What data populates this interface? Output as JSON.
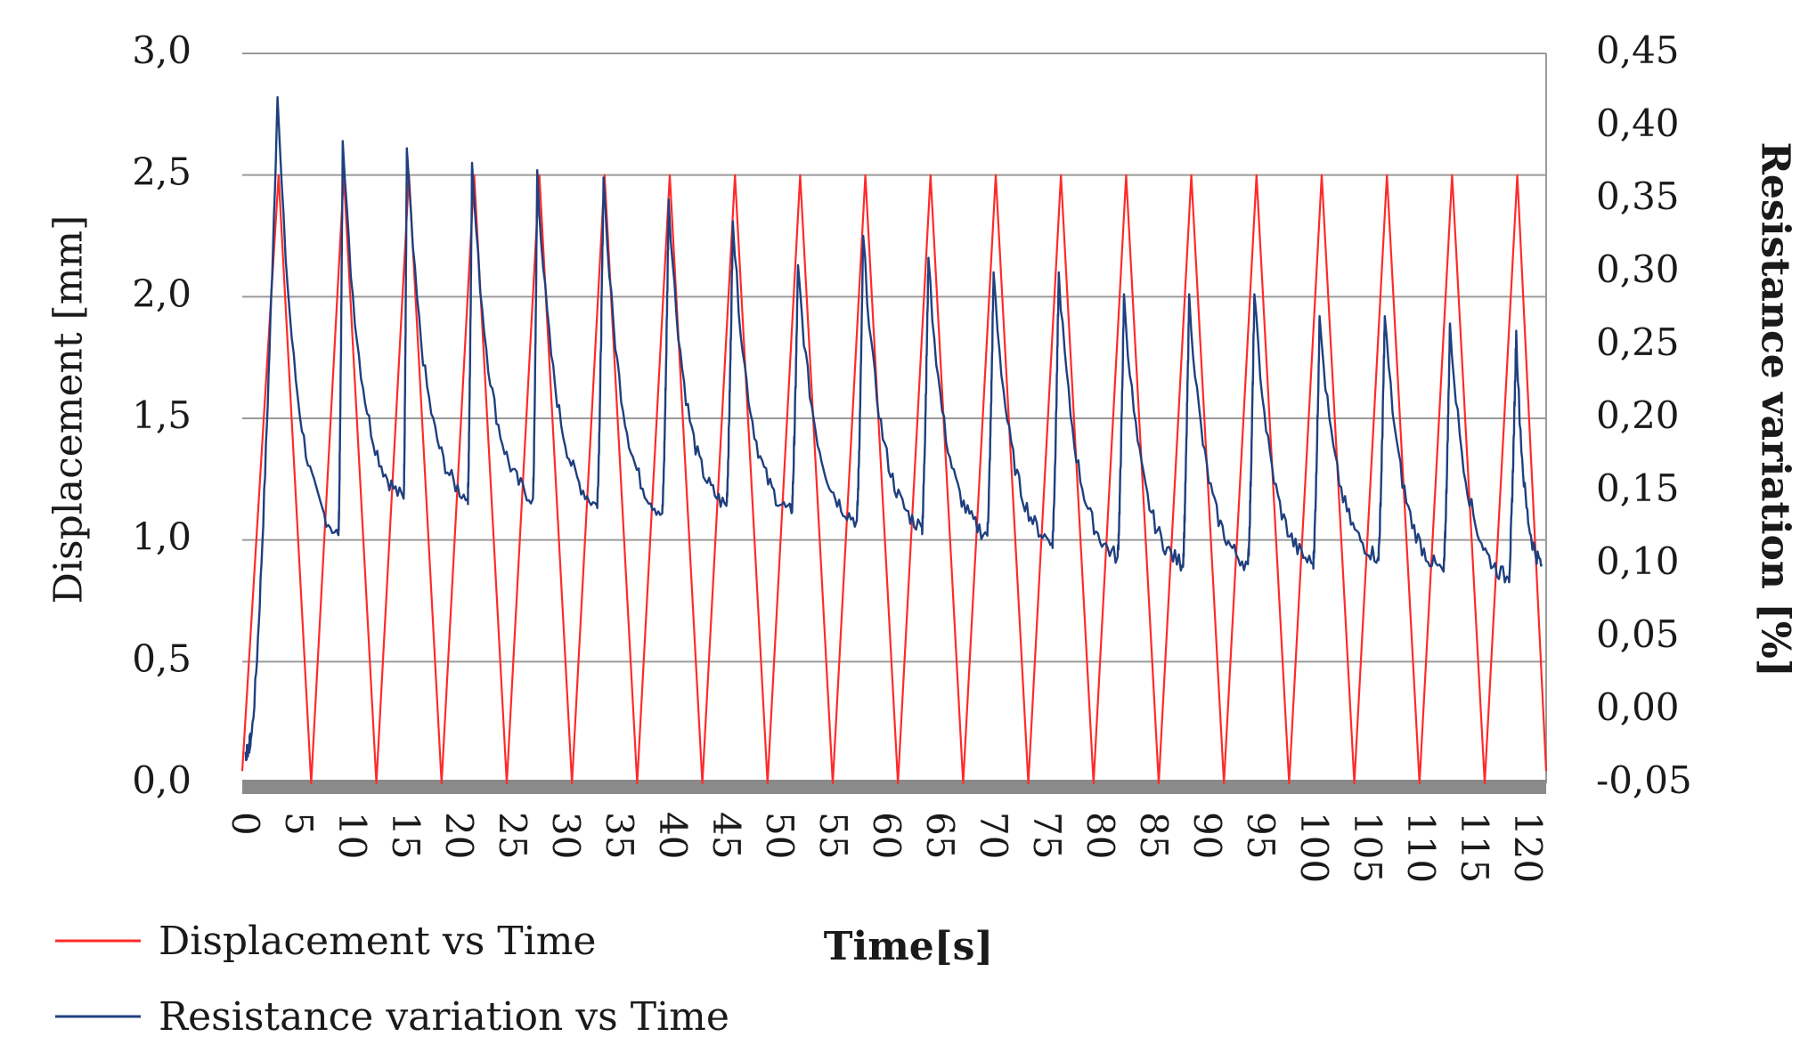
{
  "chart_data": {
    "type": "line",
    "xlabel": "Time[s]",
    "ylabel": "Displacement [mm]",
    "y2label": "Resistance variation [%]",
    "xlim": [
      0,
      122
    ],
    "ylim": [
      0,
      3.0
    ],
    "y2lim": [
      -0.05,
      0.45
    ],
    "grid": true,
    "legend_position": "bottom-left",
    "x_ticks": [
      "0",
      "5",
      "10",
      "15",
      "20",
      "25",
      "30",
      "35",
      "40",
      "45",
      "50",
      "55",
      "60",
      "65",
      "70",
      "75",
      "80",
      "85",
      "90",
      "95",
      "100",
      "105",
      "110",
      "115",
      "120"
    ],
    "y_ticks": [
      "0,0",
      "0,5",
      "1,0",
      "1,5",
      "2,0",
      "2,5",
      "3,0"
    ],
    "y2_ticks": [
      "-0,05",
      "0,00",
      "0,05",
      "0,10",
      "0,15",
      "0,20",
      "0,25",
      "0,30",
      "0,35",
      "0,40",
      "0,45"
    ],
    "series": [
      {
        "name": "Displacement vs Time",
        "axis": "left",
        "color": "#ff2a2a",
        "description": "triangular wave between 0 and 2.5 mm",
        "peaks_x": [
          3.4,
          9.5,
          15.6,
          21.7,
          27.8,
          33.9,
          40.0,
          46.1,
          52.2,
          58.3,
          64.4,
          70.5,
          76.6,
          82.7,
          88.8,
          94.9,
          101.0,
          107.1,
          113.2,
          119.3
        ],
        "peak_value": 2.5,
        "trough_value": 0.0
      },
      {
        "name": "Resistance variation vs Time",
        "axis": "right",
        "color": "#1f3f7f",
        "start": [
          [
            0.3,
            -0.03
          ],
          [
            0.8,
            -0.02
          ]
        ],
        "peaks": [
          [
            3.3,
            0.42
          ],
          [
            9.4,
            0.39
          ],
          [
            15.4,
            0.385
          ],
          [
            21.5,
            0.375
          ],
          [
            27.6,
            0.37
          ],
          [
            33.8,
            0.365
          ],
          [
            39.9,
            0.35
          ],
          [
            45.9,
            0.335
          ],
          [
            52.0,
            0.305
          ],
          [
            58.1,
            0.325
          ],
          [
            64.2,
            0.31
          ],
          [
            70.3,
            0.3
          ],
          [
            76.4,
            0.3
          ],
          [
            82.5,
            0.285
          ],
          [
            88.6,
            0.285
          ],
          [
            94.7,
            0.285
          ],
          [
            100.8,
            0.27
          ],
          [
            106.9,
            0.27
          ],
          [
            113.0,
            0.265
          ],
          [
            119.2,
            0.26
          ]
        ],
        "troughs": [
          [
            9.0,
            0.12
          ],
          [
            15.1,
            0.145
          ],
          [
            21.1,
            0.145
          ],
          [
            27.2,
            0.145
          ],
          [
            33.2,
            0.14
          ],
          [
            39.3,
            0.135
          ],
          [
            45.3,
            0.14
          ],
          [
            51.4,
            0.135
          ],
          [
            57.5,
            0.13
          ],
          [
            63.6,
            0.125
          ],
          [
            69.7,
            0.12
          ],
          [
            75.8,
            0.115
          ],
          [
            81.9,
            0.105
          ],
          [
            88.0,
            0.1
          ],
          [
            94.1,
            0.1
          ],
          [
            100.2,
            0.1
          ],
          [
            106.3,
            0.105
          ],
          [
            112.4,
            0.095
          ],
          [
            118.5,
            0.09
          ]
        ],
        "end": [
          [
            121.6,
            0.1
          ]
        ]
      }
    ]
  }
}
